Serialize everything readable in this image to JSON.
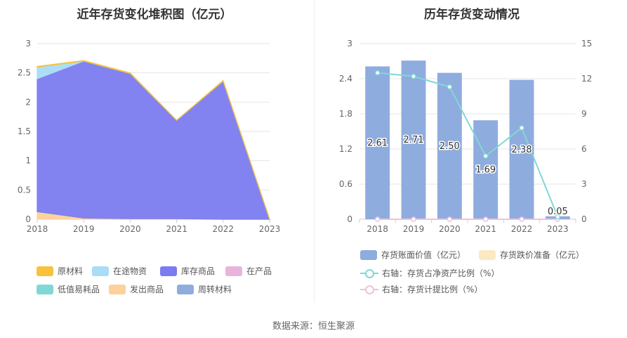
{
  "source": "数据来源：恒生聚源",
  "chart_data": [
    {
      "type": "area",
      "stacked": true,
      "title": "近年存货变化堆积图（亿元）",
      "x": [
        "2018",
        "2019",
        "2020",
        "2021",
        "2022",
        "2023"
      ],
      "yticks": [
        "0",
        "0.5",
        "1",
        "1.5",
        "2",
        "2.5",
        "3"
      ],
      "ylim": [
        0,
        3
      ],
      "series": [
        {
          "name": "原材料",
          "color": "#f9c23c",
          "values": [
            0.01,
            0.01,
            0.01,
            0.0,
            0.01,
            0.0
          ]
        },
        {
          "name": "在途物资",
          "color": "#a9dcf7",
          "values": [
            0.2,
            0.0,
            0.0,
            0.0,
            0.0,
            0.0
          ]
        },
        {
          "name": "库存商品",
          "color": "#7b7cf0",
          "values": [
            2.27,
            2.68,
            2.48,
            1.68,
            2.36,
            0.0
          ]
        },
        {
          "name": "在产品",
          "color": "#e8b4db",
          "values": [
            0.0,
            0.0,
            0.0,
            0.0,
            0.0,
            0.0
          ]
        },
        {
          "name": "低值易耗品",
          "color": "#7fd8d6",
          "values": [
            0.0,
            0.0,
            0.0,
            0.0,
            0.0,
            0.0
          ]
        },
        {
          "name": "发出商品",
          "color": "#fcd19a",
          "values": [
            0.13,
            0.02,
            0.01,
            0.01,
            0.0,
            0.0
          ]
        },
        {
          "name": "周转材料",
          "color": "#8facde",
          "values": [
            0.0,
            0.0,
            0.0,
            0.0,
            0.0,
            0.0
          ]
        }
      ],
      "stack_order": [
        "发出商品",
        "库存商品",
        "在途物资",
        "原材料"
      ],
      "legend": "bottom",
      "grid": true
    },
    {
      "type": "bar",
      "title": "历年存货变动情况",
      "categories": [
        "2018",
        "2019",
        "2020",
        "2021",
        "2022",
        "2023"
      ],
      "yticks_left": [
        "0",
        "0.6",
        "1.2",
        "1.8",
        "2.4",
        "3"
      ],
      "yticks_right": [
        "0",
        "3",
        "6",
        "9",
        "12",
        "15"
      ],
      "ylim_left": [
        0,
        3
      ],
      "ylim_right": [
        0,
        15
      ],
      "series": [
        {
          "name": "存货账面价值（亿元）",
          "type": "bar",
          "axis": "left",
          "color": "#8facde",
          "values": [
            2.61,
            2.71,
            2.5,
            1.69,
            2.38,
            0.05
          ],
          "labels": [
            "2.61",
            "2.71",
            "2.50",
            "1.69",
            "2.38",
            "0.05"
          ]
        },
        {
          "name": "存货跌价准备（亿元）",
          "type": "bar",
          "axis": "left",
          "color": "#fde8c4",
          "values": [
            0,
            0,
            0,
            0,
            0,
            0
          ]
        },
        {
          "name": "右轴：存货占净资产比例（%）",
          "type": "line",
          "axis": "right",
          "color": "#7fd8d6",
          "values": [
            12.5,
            12.2,
            11.3,
            5.4,
            7.8,
            0.2
          ]
        },
        {
          "name": "右轴：存货计提比例（%）",
          "type": "line",
          "axis": "right",
          "color": "#f0bfdf",
          "values": [
            0,
            0,
            0,
            0,
            0,
            0
          ]
        }
      ],
      "legend": "bottom",
      "grid": true
    }
  ]
}
